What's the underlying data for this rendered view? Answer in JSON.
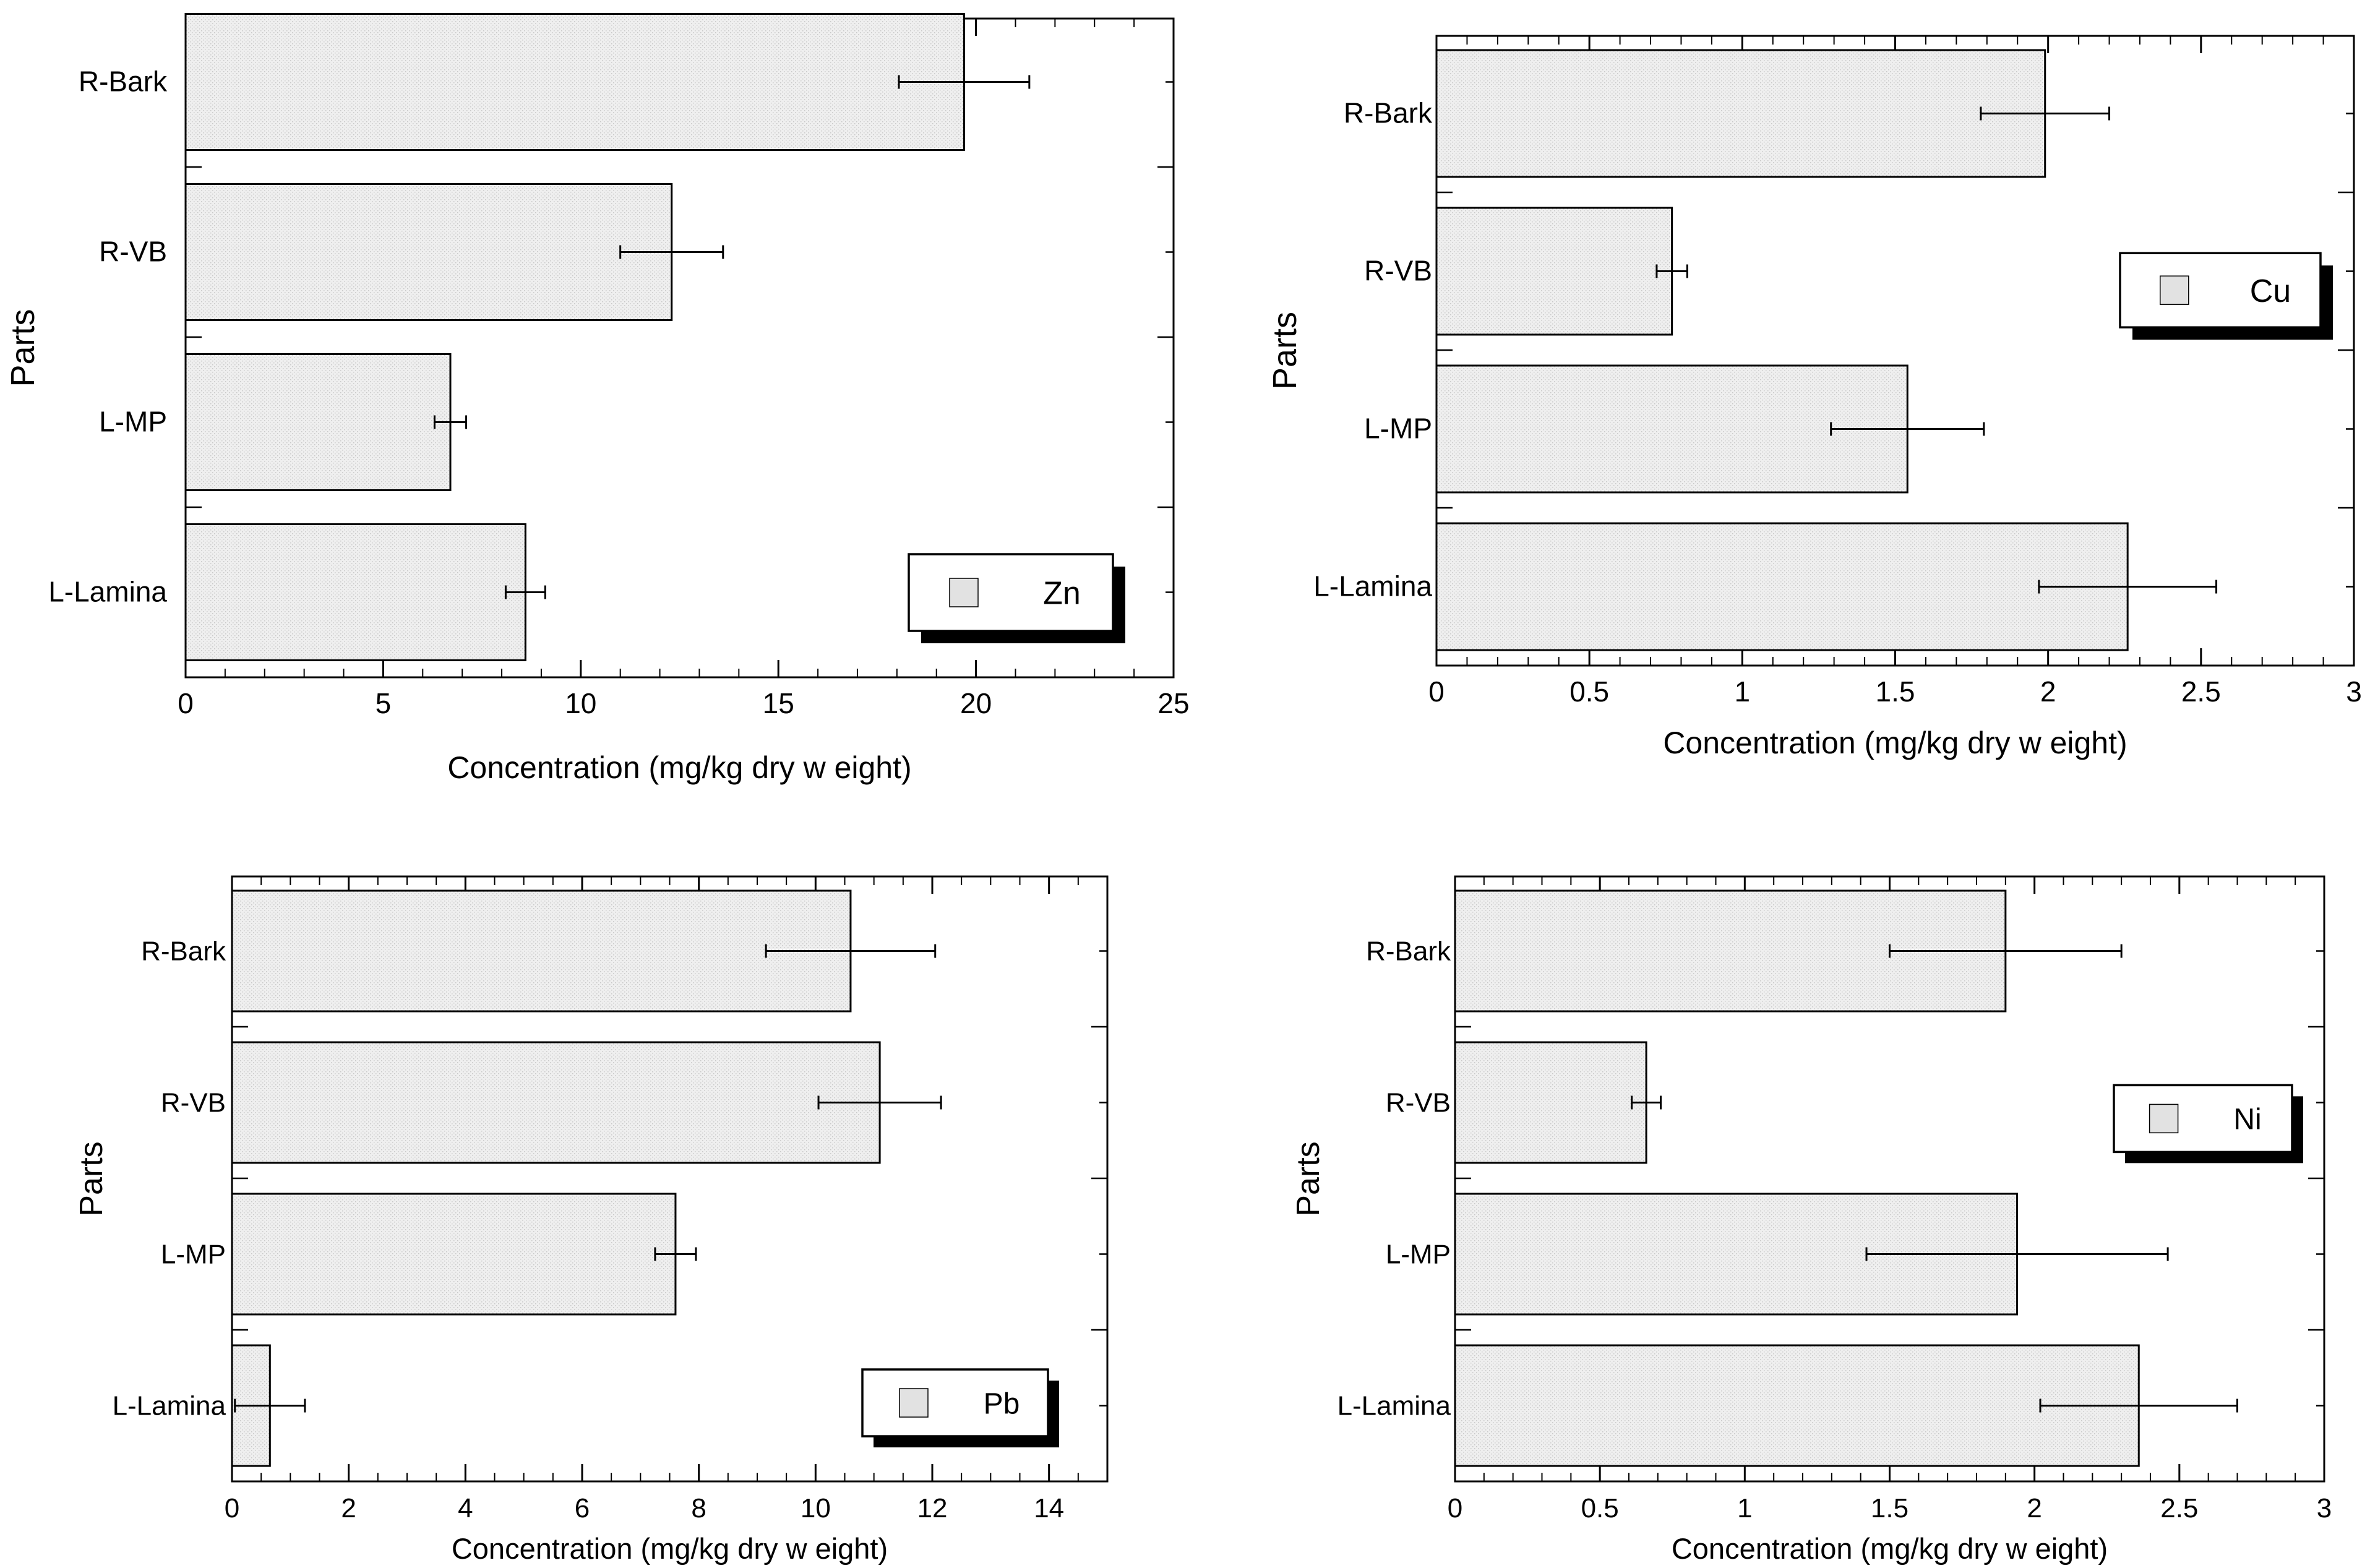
{
  "colors": {
    "bar_fill": "#efefef",
    "bar_stroke": "#000000",
    "axis": "#000000",
    "background": "#ffffff",
    "legend_swatch": "#e2e2e2"
  },
  "chart_data": [
    {
      "type": "bar",
      "orientation": "horizontal",
      "legend": "Zn",
      "legend_position": "bottom-right",
      "categories": [
        "R-Bark",
        "R-VB",
        "L-MP",
        "L-Lamina"
      ],
      "values": [
        19.7,
        12.3,
        6.7,
        8.6
      ],
      "errors": [
        1.65,
        1.3,
        0.4,
        0.5
      ],
      "xlabel": "Concentration (mg/kg dry w eight)",
      "ylabel": "Parts",
      "xlim": [
        0,
        25
      ],
      "xticks": [
        0,
        5,
        10,
        15,
        20,
        25
      ],
      "xtick_labels": [
        "0",
        "5",
        "10",
        "15",
        "20",
        "25"
      ]
    },
    {
      "type": "bar",
      "orientation": "horizontal",
      "legend": "Cu",
      "legend_position": "top-right",
      "categories": [
        "R-Bark",
        "R-VB",
        "L-MP",
        "L-Lamina"
      ],
      "values": [
        1.99,
        0.77,
        1.54,
        2.26
      ],
      "errors": [
        0.21,
        0.05,
        0.25,
        0.29
      ],
      "xlabel": "Concentration (mg/kg dry w eight)",
      "ylabel": "Parts",
      "xlim": [
        0,
        3
      ],
      "xticks": [
        0,
        0.5,
        1,
        1.5,
        2,
        2.5,
        3
      ],
      "xtick_labels": [
        "0",
        "0.5",
        "1",
        "1.5",
        "2",
        "2.5",
        "3"
      ]
    },
    {
      "type": "bar",
      "orientation": "horizontal",
      "legend": "Pb",
      "legend_position": "bottom-right",
      "categories": [
        "R-Bark",
        "R-VB",
        "L-MP",
        "L-Lamina"
      ],
      "values": [
        10.6,
        11.1,
        7.6,
        0.65
      ],
      "errors": [
        1.45,
        1.05,
        0.35,
        0.6
      ],
      "xlabel": "Concentration (mg/kg dry w eight)",
      "ylabel": "Parts",
      "xlim": [
        0,
        15
      ],
      "xticks": [
        0,
        2,
        4,
        6,
        8,
        10,
        12,
        14
      ],
      "xtick_labels": [
        "0",
        "2",
        "4",
        "6",
        "8",
        "10",
        "12",
        "14"
      ]
    },
    {
      "type": "bar",
      "orientation": "horizontal",
      "legend": "Ni",
      "legend_position": "top-right",
      "categories": [
        "R-Bark",
        "R-VB",
        "L-MP",
        "L-Lamina"
      ],
      "values": [
        1.9,
        0.66,
        1.94,
        2.36
      ],
      "errors": [
        0.4,
        0.05,
        0.52,
        0.34
      ],
      "xlabel": "Concentration (mg/kg dry w eight)",
      "ylabel": "Parts",
      "xlim": [
        0,
        3
      ],
      "xticks": [
        0,
        0.5,
        1,
        1.5,
        2,
        2.5,
        3
      ],
      "xtick_labels": [
        "0",
        "0.5",
        "1",
        "1.5",
        "2",
        "2.5",
        "3"
      ]
    }
  ]
}
